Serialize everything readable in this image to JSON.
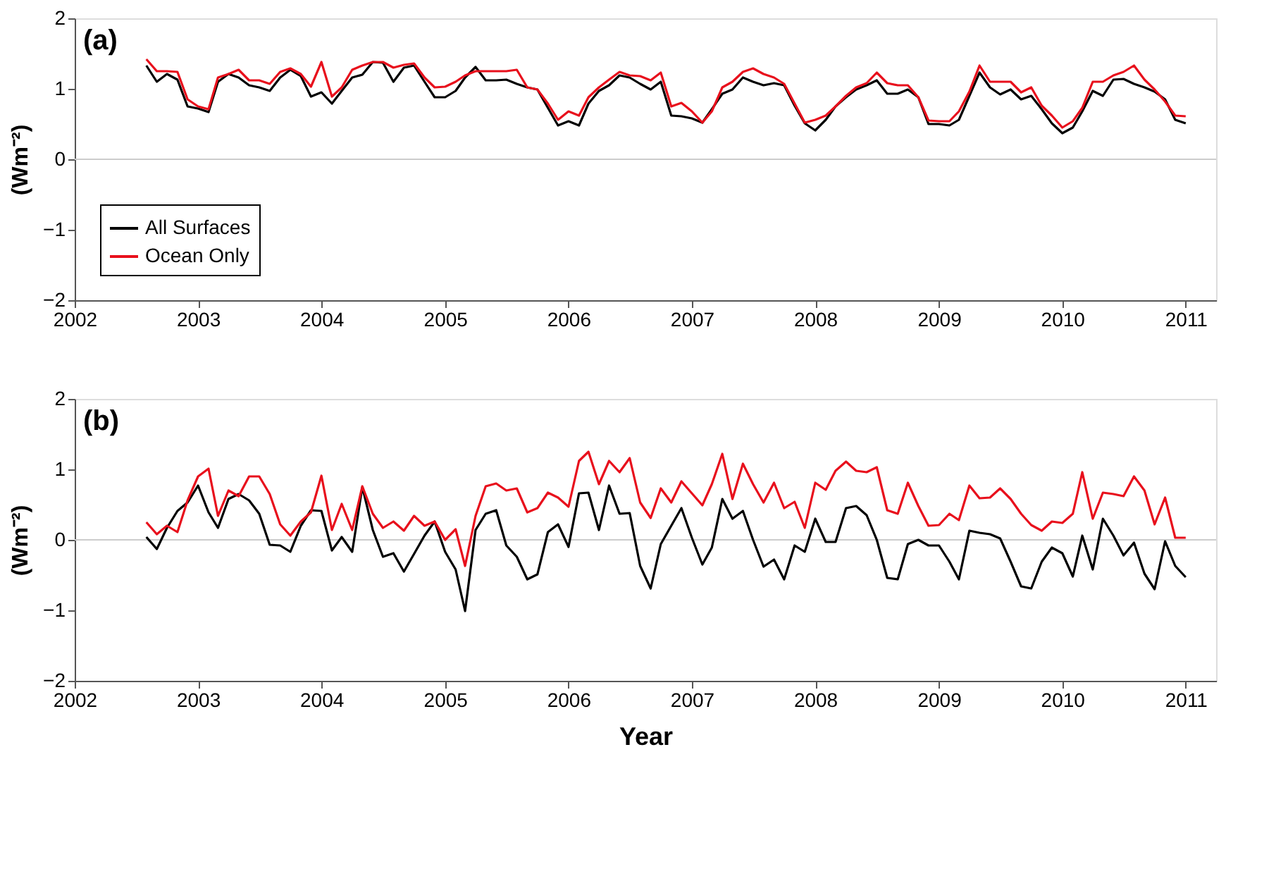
{
  "chart_data": [
    {
      "type": "line",
      "ylabel": "(Wm⁻²)",
      "annotations": [
        "(a)"
      ],
      "legend": "bottom left",
      "x": [
        "2002-08",
        "2002-09",
        "2002-10",
        "2002-11",
        "2002-12",
        "2003-01",
        "2003-02",
        "2003-03",
        "2003-04",
        "2003-05",
        "2003-06",
        "2003-07",
        "2003-08",
        "2003-09",
        "2003-10",
        "2003-11",
        "2003-12",
        "2004-01",
        "2004-02",
        "2004-03",
        "2004-04",
        "2004-05",
        "2004-06",
        "2004-07",
        "2004-08",
        "2004-09",
        "2004-10",
        "2004-11",
        "2004-12",
        "2005-01",
        "2005-02",
        "2005-03",
        "2005-04",
        "2005-05",
        "2005-06",
        "2005-07",
        "2005-08",
        "2005-09",
        "2005-10",
        "2005-11",
        "2005-12",
        "2006-01",
        "2006-02",
        "2006-03",
        "2006-04",
        "2006-05",
        "2006-06",
        "2006-07",
        "2006-08",
        "2006-09",
        "2006-10",
        "2006-11",
        "2006-12",
        "2007-01",
        "2007-02",
        "2007-03",
        "2007-04",
        "2007-05",
        "2007-06",
        "2007-07",
        "2007-08",
        "2007-09",
        "2007-10",
        "2007-11",
        "2007-12",
        "2008-01",
        "2008-02",
        "2008-03",
        "2008-04",
        "2008-05",
        "2008-06",
        "2008-07",
        "2008-08",
        "2008-09",
        "2008-10",
        "2008-11",
        "2008-12",
        "2009-01",
        "2009-02",
        "2009-03",
        "2009-04",
        "2009-05",
        "2009-06",
        "2009-07",
        "2009-08",
        "2009-09",
        "2009-10",
        "2009-11",
        "2009-12",
        "2010-01",
        "2010-02",
        "2010-03",
        "2010-04",
        "2010-05",
        "2010-06",
        "2010-07",
        "2010-08",
        "2010-09",
        "2010-10",
        "2010-11",
        "2010-12",
        "2011-01"
      ],
      "xlim": [
        "2002-01",
        "2011-04"
      ],
      "xticks": [
        "2002",
        "2003",
        "2004",
        "2005",
        "2006",
        "2007",
        "2008",
        "2009",
        "2010",
        "2011"
      ],
      "ylim": [
        -2,
        2
      ],
      "yticks": [
        -2,
        -1,
        0,
        1,
        2
      ],
      "ref_lines": [
        {
          "axis": "y",
          "value": 0,
          "color": "#cccccc"
        }
      ],
      "series": [
        {
          "name": "All Surfaces",
          "color": "#000000",
          "values": [
            1.33,
            1.1,
            1.21,
            1.13,
            0.75,
            0.72,
            0.67,
            1.1,
            1.21,
            1.16,
            1.05,
            1.02,
            0.97,
            1.16,
            1.27,
            1.18,
            0.89,
            0.95,
            0.79,
            0.97,
            1.16,
            1.2,
            1.38,
            1.37,
            1.1,
            1.3,
            1.33,
            1.1,
            0.88,
            0.88,
            0.97,
            1.16,
            1.31,
            1.12,
            1.12,
            1.13,
            1.07,
            1.02,
            0.99,
            0.73,
            0.48,
            0.54,
            0.48,
            0.79,
            0.97,
            1.05,
            1.19,
            1.16,
            1.07,
            0.99,
            1.1,
            0.62,
            0.61,
            0.58,
            0.52,
            0.71,
            0.93,
            0.99,
            1.16,
            1.1,
            1.05,
            1.08,
            1.05,
            0.76,
            0.51,
            0.41,
            0.56,
            0.75,
            0.88,
            0.99,
            1.05,
            1.12,
            0.93,
            0.93,
            0.99,
            0.88,
            0.5,
            0.5,
            0.48,
            0.56,
            0.9,
            1.23,
            1.02,
            0.92,
            0.99,
            0.85,
            0.9,
            0.71,
            0.51,
            0.37,
            0.45,
            0.68,
            0.97,
            0.9,
            1.13,
            1.14,
            1.07,
            1.02,
            0.96,
            0.85,
            0.56,
            0.51
          ]
        },
        {
          "name": "Ocean Only",
          "color": "#e8101c",
          "values": [
            1.42,
            1.25,
            1.25,
            1.24,
            0.85,
            0.75,
            0.71,
            1.16,
            1.21,
            1.27,
            1.12,
            1.12,
            1.07,
            1.24,
            1.29,
            1.21,
            1.03,
            1.38,
            0.89,
            1.02,
            1.27,
            1.33,
            1.38,
            1.38,
            1.3,
            1.34,
            1.36,
            1.16,
            1.02,
            1.03,
            1.1,
            1.19,
            1.25,
            1.25,
            1.25,
            1.25,
            1.27,
            1.02,
            0.99,
            0.79,
            0.56,
            0.68,
            0.62,
            0.88,
            1.02,
            1.13,
            1.24,
            1.19,
            1.18,
            1.12,
            1.23,
            0.75,
            0.8,
            0.68,
            0.52,
            0.68,
            1.02,
            1.1,
            1.24,
            1.29,
            1.21,
            1.16,
            1.07,
            0.79,
            0.52,
            0.56,
            0.62,
            0.75,
            0.9,
            1.02,
            1.08,
            1.23,
            1.08,
            1.05,
            1.05,
            0.88,
            0.55,
            0.54,
            0.54,
            0.68,
            0.96,
            1.33,
            1.1,
            1.1,
            1.1,
            0.95,
            1.02,
            0.76,
            0.62,
            0.45,
            0.54,
            0.73,
            1.1,
            1.1,
            1.19,
            1.24,
            1.33,
            1.13,
            0.99,
            0.82,
            0.62,
            0.61
          ]
        }
      ]
    },
    {
      "type": "line",
      "ylabel": "(Wm⁻²)",
      "xlabel": "Year",
      "annotations": [
        "(b)"
      ],
      "x": [
        "2002-08",
        "2002-09",
        "2002-10",
        "2002-11",
        "2002-12",
        "2003-01",
        "2003-02",
        "2003-03",
        "2003-04",
        "2003-05",
        "2003-06",
        "2003-07",
        "2003-08",
        "2003-09",
        "2003-10",
        "2003-11",
        "2003-12",
        "2004-01",
        "2004-02",
        "2004-03",
        "2004-04",
        "2004-05",
        "2004-06",
        "2004-07",
        "2004-08",
        "2004-09",
        "2004-10",
        "2004-11",
        "2004-12",
        "2005-01",
        "2005-02",
        "2005-03",
        "2005-04",
        "2005-05",
        "2005-06",
        "2005-07",
        "2005-08",
        "2005-09",
        "2005-10",
        "2005-11",
        "2005-12",
        "2006-01",
        "2006-02",
        "2006-03",
        "2006-04",
        "2006-05",
        "2006-06",
        "2006-07",
        "2006-08",
        "2006-09",
        "2006-10",
        "2006-11",
        "2006-12",
        "2007-01",
        "2007-02",
        "2007-03",
        "2007-04",
        "2007-05",
        "2007-06",
        "2007-07",
        "2007-08",
        "2007-09",
        "2007-10",
        "2007-11",
        "2007-12",
        "2008-01",
        "2008-02",
        "2008-03",
        "2008-04",
        "2008-05",
        "2008-06",
        "2008-07",
        "2008-08",
        "2008-09",
        "2008-10",
        "2008-11",
        "2008-12",
        "2009-01",
        "2009-02",
        "2009-03",
        "2009-04",
        "2009-05",
        "2009-06",
        "2009-07",
        "2009-08",
        "2009-09",
        "2009-10",
        "2009-11",
        "2009-12",
        "2010-01",
        "2010-02",
        "2010-03",
        "2010-04",
        "2010-05",
        "2010-06",
        "2010-07",
        "2010-08",
        "2010-09",
        "2010-10",
        "2010-11",
        "2010-12",
        "2011-01"
      ],
      "xlim": [
        "2002-01",
        "2011-04"
      ],
      "xticks": [
        "2002",
        "2003",
        "2004",
        "2005",
        "2006",
        "2007",
        "2008",
        "2009",
        "2010",
        "2011"
      ],
      "ylim": [
        -2,
        2
      ],
      "yticks": [
        -2,
        -1,
        0,
        1,
        2
      ],
      "ref_lines": [
        {
          "axis": "y",
          "value": 0,
          "color": "#cccccc"
        }
      ],
      "series": [
        {
          "color": "#000000",
          "values": [
            0.04,
            -0.13,
            0.17,
            0.41,
            0.53,
            0.77,
            0.39,
            0.17,
            0.58,
            0.65,
            0.56,
            0.37,
            -0.07,
            -0.08,
            -0.17,
            0.2,
            0.42,
            0.41,
            -0.15,
            0.04,
            -0.17,
            0.75,
            0.14,
            -0.24,
            -0.19,
            -0.45,
            -0.2,
            0.06,
            0.26,
            -0.17,
            -0.42,
            -1.01,
            0.14,
            0.37,
            0.42,
            -0.08,
            -0.24,
            -0.56,
            -0.49,
            0.11,
            0.22,
            -0.1,
            0.66,
            0.67,
            0.14,
            0.77,
            0.37,
            0.38,
            -0.37,
            -0.69,
            -0.06,
            0.2,
            0.45,
            0.03,
            -0.35,
            -0.11,
            0.58,
            0.3,
            0.41,
            0.0,
            -0.38,
            -0.28,
            -0.56,
            -0.08,
            -0.17,
            0.3,
            -0.03,
            -0.03,
            0.45,
            0.48,
            0.35,
            0.0,
            -0.54,
            -0.56,
            -0.06,
            0.0,
            -0.08,
            -0.08,
            -0.31,
            -0.56,
            0.13,
            0.1,
            0.08,
            0.02,
            -0.31,
            -0.66,
            -0.69,
            -0.31,
            -0.11,
            -0.19,
            -0.52,
            0.06,
            -0.42,
            0.3,
            0.06,
            -0.22,
            -0.04,
            -0.48,
            -0.7,
            -0.02,
            -0.37,
            -0.53
          ]
        },
        {
          "color": "#e8101c",
          "values": [
            0.25,
            0.08,
            0.2,
            0.11,
            0.56,
            0.9,
            1.01,
            0.34,
            0.7,
            0.62,
            0.9,
            0.9,
            0.65,
            0.22,
            0.06,
            0.26,
            0.39,
            0.91,
            0.14,
            0.51,
            0.14,
            0.76,
            0.37,
            0.17,
            0.26,
            0.13,
            0.34,
            0.2,
            0.26,
            0.0,
            0.15,
            -0.37,
            0.34,
            0.76,
            0.8,
            0.7,
            0.73,
            0.39,
            0.45,
            0.67,
            0.6,
            0.47,
            1.12,
            1.25,
            0.79,
            1.12,
            0.96,
            1.16,
            0.53,
            0.31,
            0.73,
            0.53,
            0.83,
            0.66,
            0.49,
            0.79,
            1.22,
            0.58,
            1.08,
            0.79,
            0.53,
            0.81,
            0.45,
            0.54,
            0.17,
            0.81,
            0.71,
            0.98,
            1.11,
            0.98,
            0.96,
            1.03,
            0.42,
            0.37,
            0.81,
            0.48,
            0.2,
            0.21,
            0.37,
            0.28,
            0.77,
            0.59,
            0.6,
            0.73,
            0.58,
            0.37,
            0.21,
            0.13,
            0.26,
            0.24,
            0.37,
            0.96,
            0.3,
            0.67,
            0.65,
            0.62,
            0.9,
            0.7,
            0.22,
            0.6,
            0.03,
            0.03
          ]
        }
      ]
    }
  ]
}
